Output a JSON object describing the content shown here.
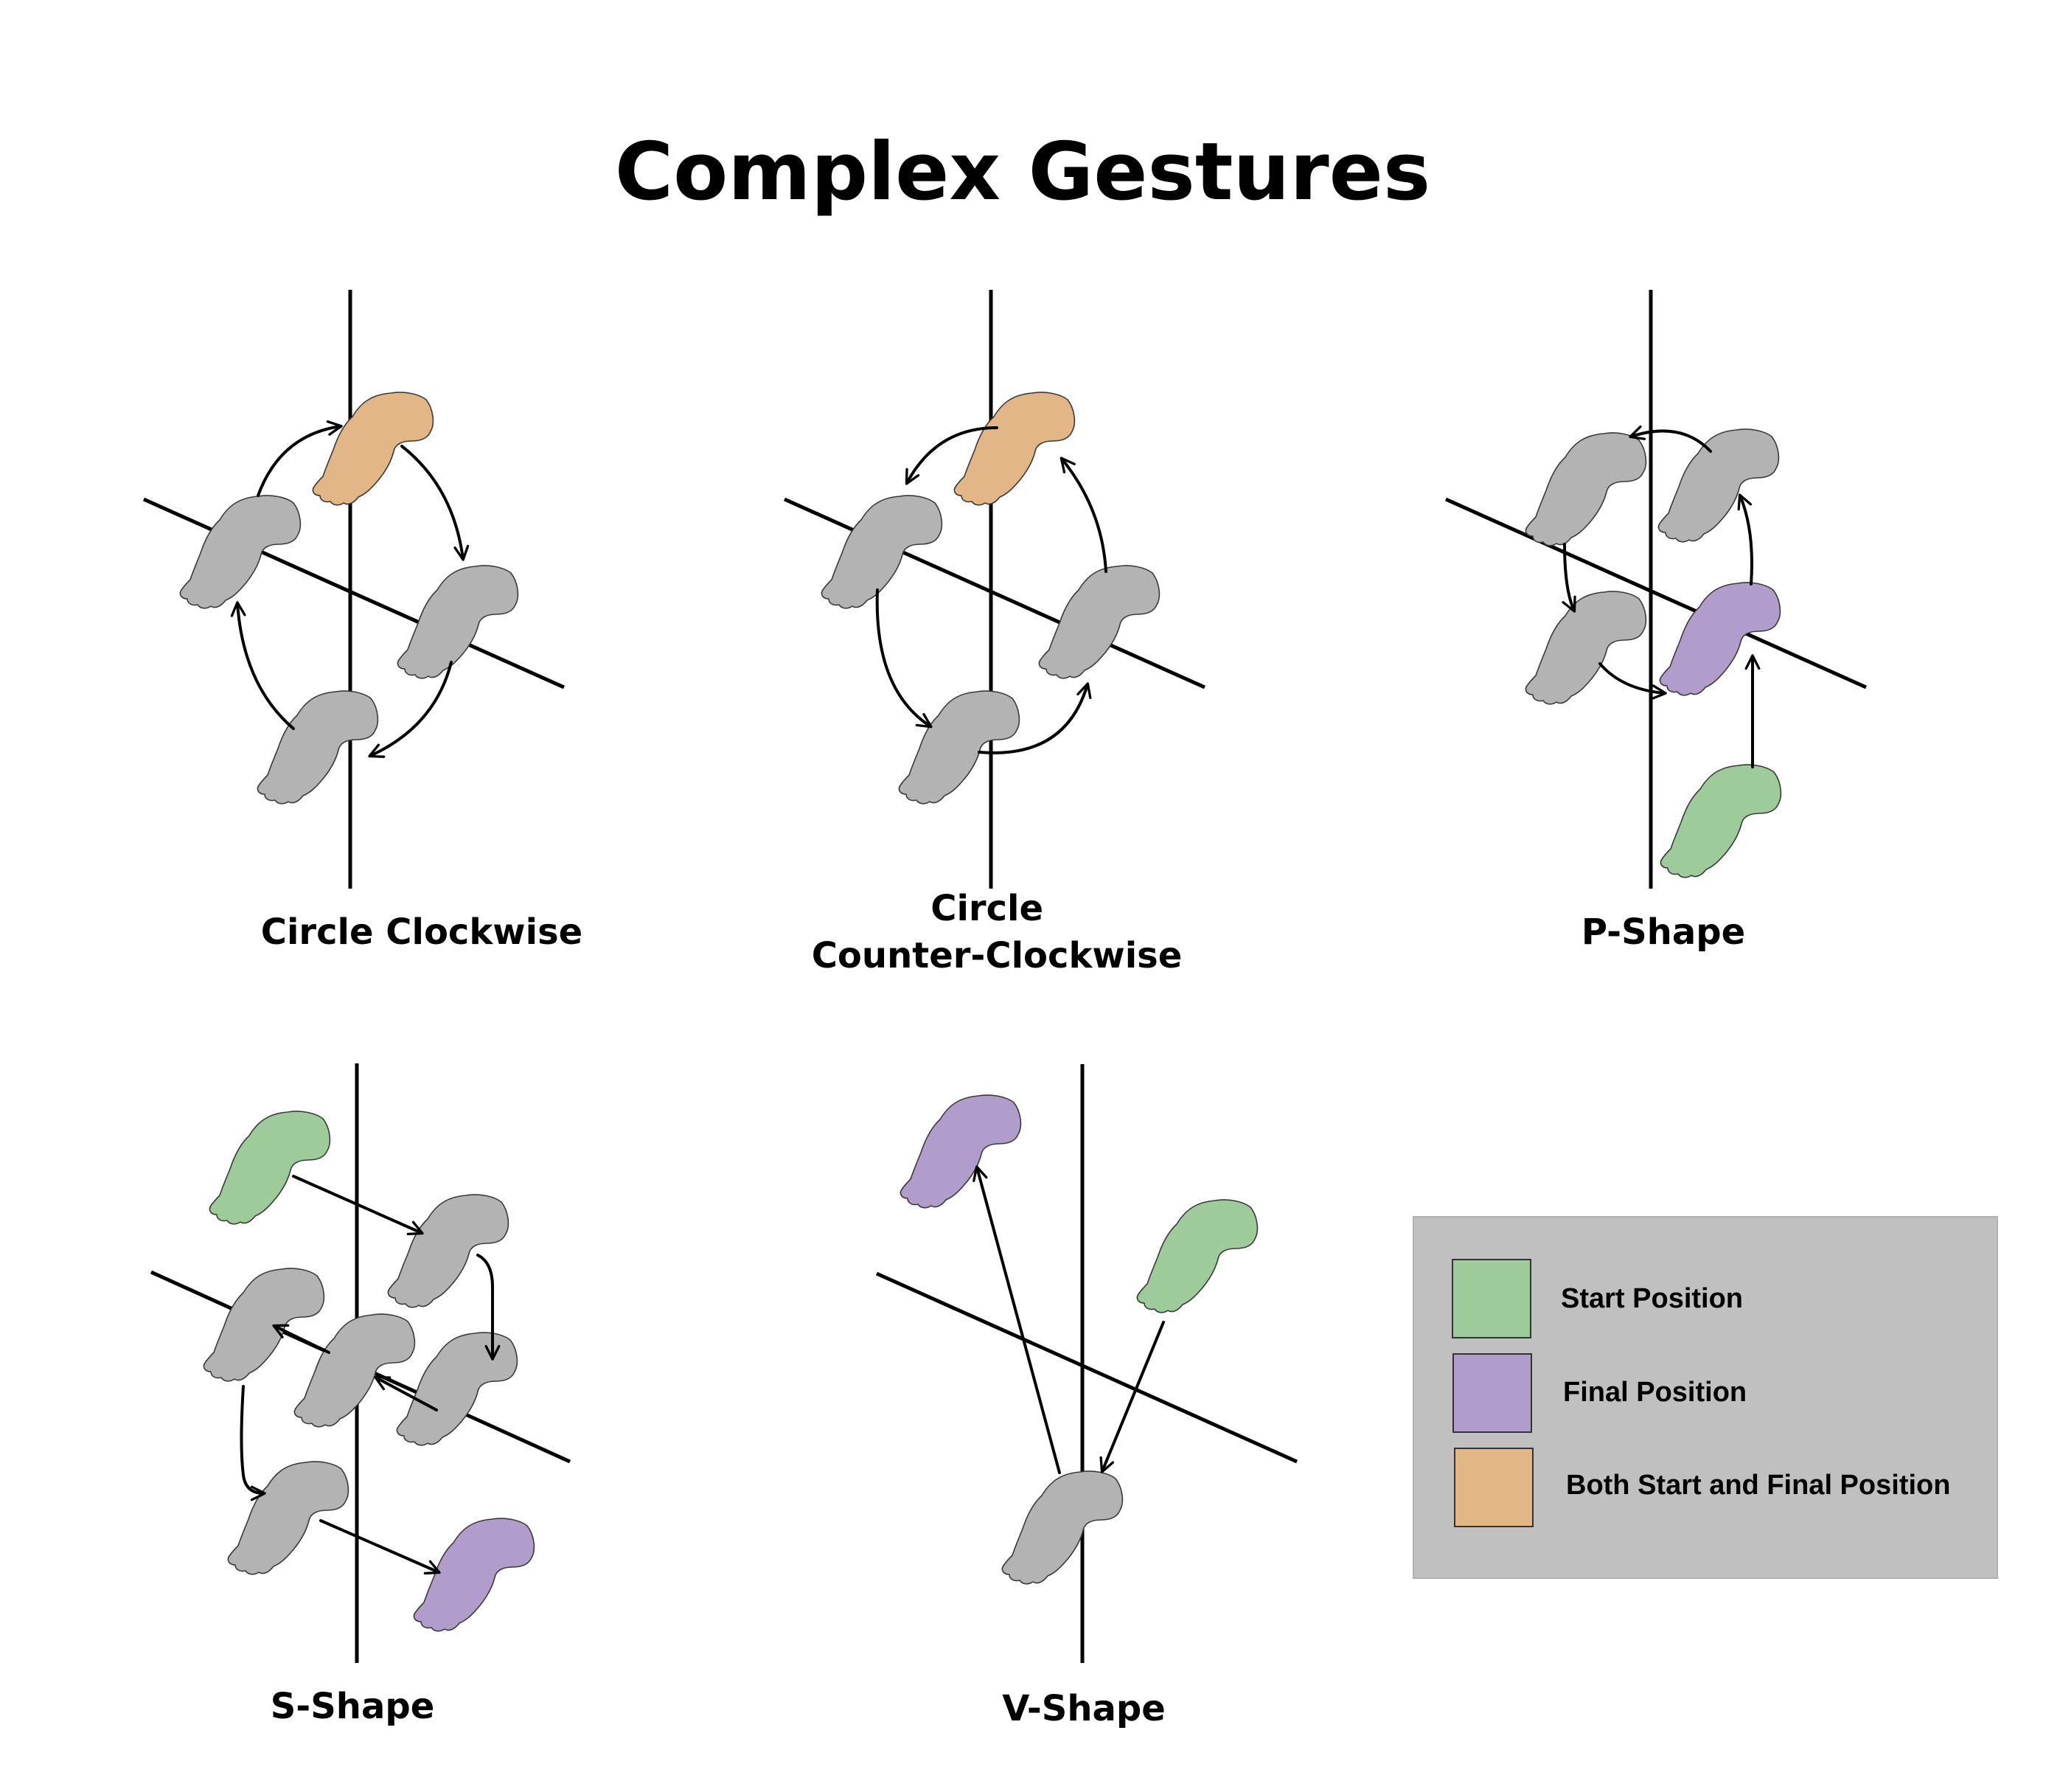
{
  "title": "Complex Gestures",
  "colors": {
    "start": "#9ecb9a",
    "final": "#b09dcc",
    "both": "#e2b685",
    "intermediate": "#b3b3b3",
    "legend_bg": "#c0c0c0"
  },
  "panels": [
    {
      "caption_lines": [
        "Circle Clockwise"
      ]
    },
    {
      "caption_lines": [
        "Circle",
        "Counter-Clockwise"
      ]
    },
    {
      "caption_lines": [
        "P-Shape"
      ]
    },
    {
      "caption_lines": [
        "S-Shape"
      ]
    },
    {
      "caption_lines": [
        "V-Shape"
      ]
    }
  ],
  "legend": [
    {
      "label": "Start Position",
      "color_key": "start"
    },
    {
      "label": "Final Position",
      "color_key": "final"
    },
    {
      "label": "Both Start and Final Position",
      "color_key": "both"
    }
  ]
}
